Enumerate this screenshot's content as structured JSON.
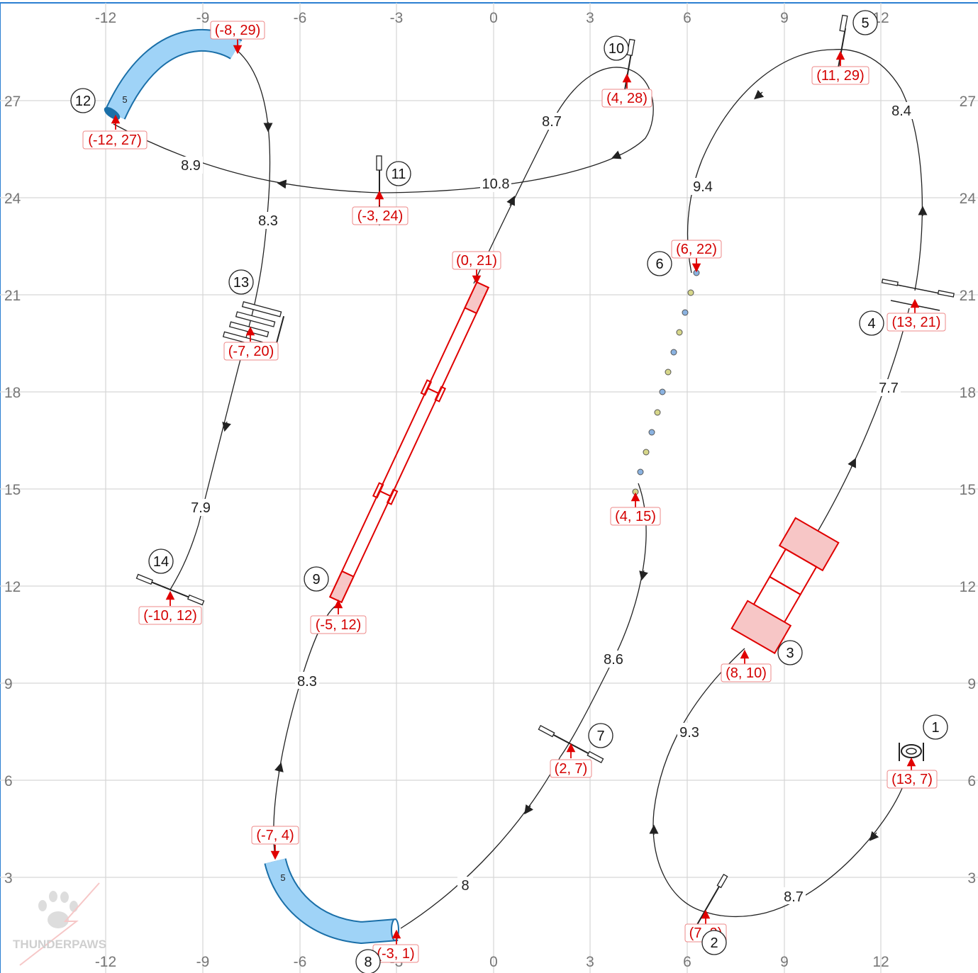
{
  "grid": {
    "x_ticks_top": [
      "-12",
      "-9",
      "-6",
      "-3",
      "0",
      "3",
      "6",
      "9",
      "12"
    ],
    "x_ticks_bottom": [
      "-12",
      "-9",
      "-6",
      "-3",
      "0",
      "3",
      "6",
      "9",
      "12"
    ],
    "y_ticks_left": [
      "27",
      "24",
      "21",
      "18",
      "15",
      "12",
      "9",
      "6",
      "3"
    ],
    "y_ticks_right": [
      "27",
      "24",
      "21",
      "18",
      "15",
      "12",
      "9",
      "6",
      "3"
    ]
  },
  "obstacles": [
    {
      "number": "1",
      "type": "start",
      "coord": "(13, 7)"
    },
    {
      "number": "2",
      "type": "jump",
      "coord": "(7, 2)"
    },
    {
      "number": "3",
      "type": "tire/table",
      "coord": "(8, 10)"
    },
    {
      "number": "4",
      "type": "double-jump",
      "coord": "(13, 21)"
    },
    {
      "number": "5",
      "type": "jump",
      "coord": "(11, 29)"
    },
    {
      "number": "6",
      "type": "weave-poles",
      "coord": "(6, 22)"
    },
    {
      "number": "6-end",
      "type": "weave-poles-end",
      "coord": "(4, 15)"
    },
    {
      "number": "7",
      "type": "jump",
      "coord": "(2, 7)"
    },
    {
      "number": "8",
      "type": "tunnel",
      "coord": "(-3, 1)"
    },
    {
      "number": "8-entry",
      "type": "tunnel-end",
      "coord": "(-7, 4)"
    },
    {
      "number": "9",
      "type": "dogwalk",
      "coord": "(-5, 12)"
    },
    {
      "number": "9-end",
      "type": "dogwalk-end",
      "coord": "(0, 21)"
    },
    {
      "number": "10",
      "type": "jump",
      "coord": "(4, 28)"
    },
    {
      "number": "11",
      "type": "jump",
      "coord": "(-3, 24)"
    },
    {
      "number": "12",
      "type": "tunnel",
      "coord": "(-12, 27)"
    },
    {
      "number": "12-entry",
      "type": "tunnel-end",
      "coord": "(-8, 29)"
    },
    {
      "number": "13",
      "type": "triple-jump",
      "coord": "(-7, 20)"
    },
    {
      "number": "14",
      "type": "jump",
      "coord": "(-10, 12)"
    }
  ],
  "tunnels": [
    {
      "label": "5"
    },
    {
      "label": "5"
    }
  ],
  "segments": [
    "8.7",
    "9.3",
    "7.7",
    "8.4",
    "9.4",
    "8.6",
    "8",
    "8.3",
    "8.7",
    "10.8",
    "8.9",
    "8.3",
    "7.9"
  ],
  "logo": {
    "text": "THUNDERPAWS"
  }
}
